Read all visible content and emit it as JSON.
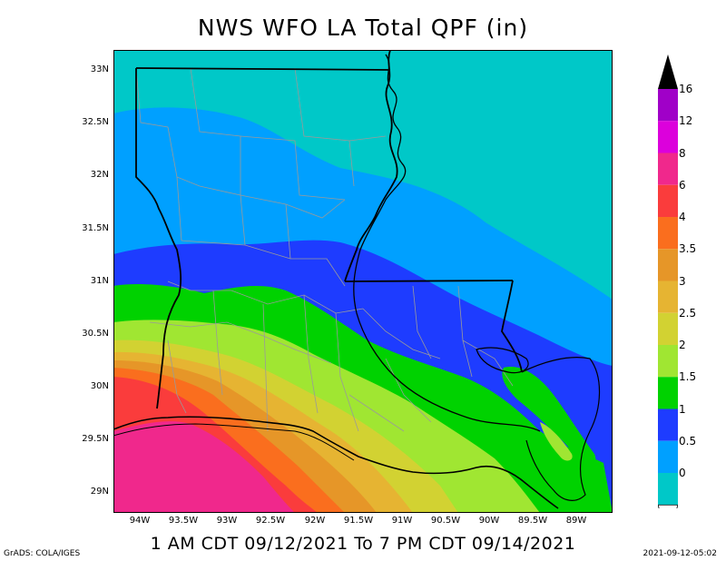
{
  "title": "NWS WFO LA Total QPF (in)",
  "subtitle": "1 AM CDT 09/12/2021 To 7 PM CDT 09/14/2021",
  "footer_left": "GrADS: COLA/IGES",
  "footer_right": "2021-09-12-05:02",
  "lat_labels": [
    "33N",
    "32.5N",
    "32N",
    "31.5N",
    "31N",
    "30.5N",
    "30N",
    "29.5N",
    "29N"
  ],
  "lon_labels": [
    "94W",
    "93.5W",
    "93W",
    "92.5W",
    "92W",
    "91.5W",
    "91W",
    "90.5W",
    "90W",
    "89.5W",
    "89W"
  ],
  "colorbar": {
    "labels": [
      "16",
      "12",
      "8",
      "6",
      "4",
      "3.5",
      "3",
      "2.5",
      "2",
      "1.5",
      "1",
      "0.5",
      "0"
    ],
    "colors": [
      "#a000c8",
      "#dc00dc",
      "#f0288c",
      "#fa3c3c",
      "#fa6e1e",
      "#e69628",
      "#e6b432",
      "#d2d232",
      "#a0e632",
      "#00d200",
      "#1e3cff",
      "#00a0ff",
      "#00c8c8"
    ]
  }
}
